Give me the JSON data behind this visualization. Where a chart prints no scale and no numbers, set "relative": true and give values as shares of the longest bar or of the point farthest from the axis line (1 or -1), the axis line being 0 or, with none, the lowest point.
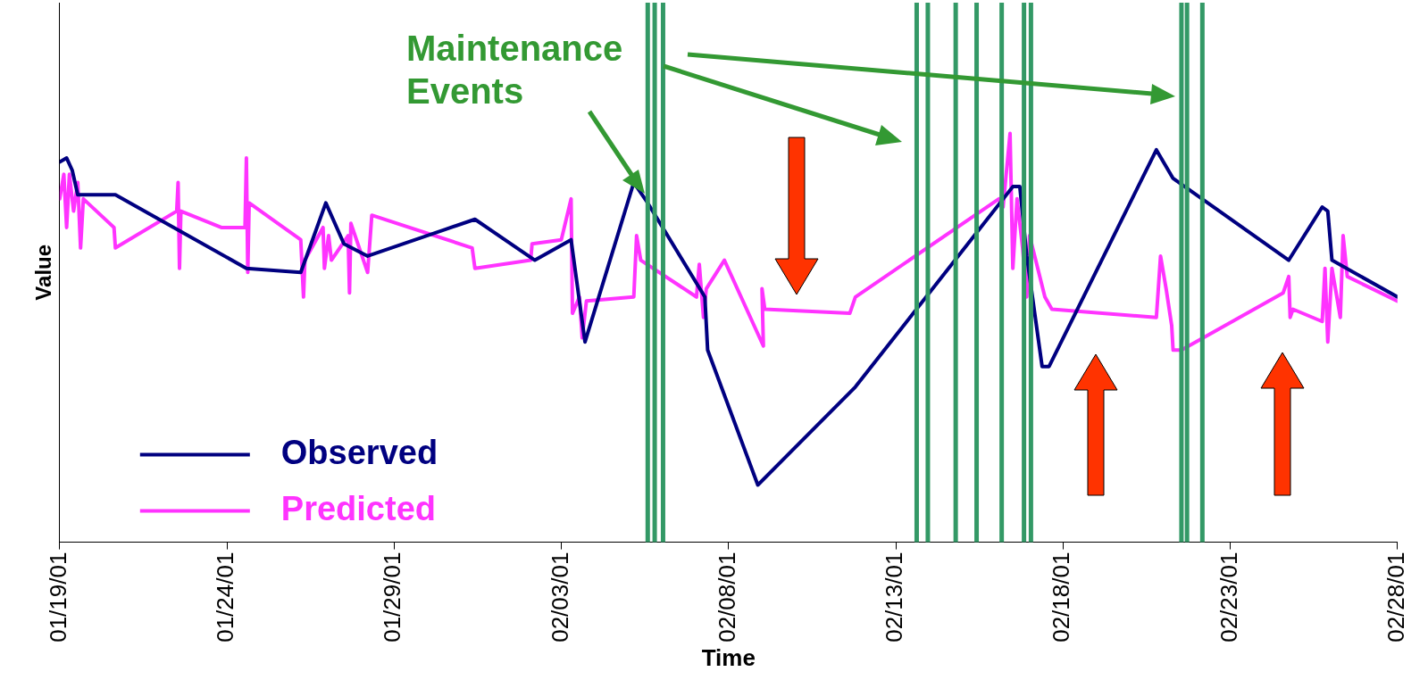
{
  "chart_data": {
    "type": "line",
    "xlabel": "Time",
    "ylabel": "Value",
    "relative": true,
    "legend": "bottom left",
    "marker": "none",
    "line_style": "solid",
    "xlim": [
      "--01-19",
      "--02-28"
    ],
    "xticks": [
      {
        "value": "--01-19",
        "label": "01/19/01"
      },
      {
        "value": "--01-24",
        "label": "01/24/01"
      },
      {
        "value": "--01-29",
        "label": "01/29/01"
      },
      {
        "value": "--02-03",
        "label": "02/03/01"
      },
      {
        "value": "--02-08",
        "label": "02/08/01"
      },
      {
        "value": "--02-13",
        "label": "02/13/01"
      },
      {
        "value": "--02-18",
        "label": "02/18/01"
      },
      {
        "value": "--02-23",
        "label": "02/23/01"
      },
      {
        "value": "--02-28",
        "label": "02/28/01"
      }
    ],
    "annotations": [
      "Maintenance Events"
    ],
    "ref_lines": [
      {
        "axis": "x",
        "value": "--02-05T14:00",
        "color": "#339966"
      },
      {
        "axis": "x",
        "value": "--02-05T19:00",
        "color": "#339966"
      },
      {
        "axis": "x",
        "value": "--02-06T01:00",
        "color": "#339966"
      },
      {
        "axis": "x",
        "value": "--02-13T15:00",
        "color": "#339966"
      },
      {
        "axis": "x",
        "value": "--02-13T23:00",
        "color": "#339966"
      },
      {
        "axis": "x",
        "value": "--02-14T19:00",
        "color": "#339966"
      },
      {
        "axis": "x",
        "value": "--02-15T10:00",
        "color": "#339966"
      },
      {
        "axis": "x",
        "value": "--02-16T04:00",
        "color": "#339966"
      },
      {
        "axis": "x",
        "value": "--02-16T20:00",
        "color": "#339966"
      },
      {
        "axis": "x",
        "value": "--02-17T01:00",
        "color": "#339966"
      },
      {
        "axis": "x",
        "value": "--02-21T13:00",
        "color": "#339966"
      },
      {
        "axis": "x",
        "value": "--02-21T17:00",
        "color": "#339966"
      },
      {
        "axis": "x",
        "value": "--02-22T04:00",
        "color": "#339966"
      }
    ],
    "series": [
      {
        "name": "Observed",
        "color": "#000080",
        "x": [
          "--01-19T00:00",
          "--01-19T05:00",
          "--01-19T09:00",
          "--01-19T13:00",
          "--01-20T16:00",
          "--01-24T14:00",
          "--01-26T05:00",
          "--01-26T23:00",
          "--01-27T12:00",
          "--01-28T05:00",
          "--01-31T10:00",
          "--02-02T05:00",
          "--02-03T07:00",
          "--02-03T17:00",
          "--02-05T04:00",
          "--02-05T14:00",
          "--02-07T07:00",
          "--02-07T09:00",
          "--02-08T21:00",
          "--02-11T19:00",
          "--02-16T12:00",
          "--02-16T17:00",
          "--02-16T22:00",
          "--02-17T09:00",
          "--02-17T14:00",
          "--02-20T19:00",
          "--02-21T07:00",
          "--02-24T18:00",
          "--02-25T18:00",
          "--02-25T22:00",
          "--02-26T01:00",
          "--02-28T00:00"
        ],
        "values": [
          0.93,
          0.94,
          0.91,
          0.85,
          0.85,
          0.67,
          0.66,
          0.83,
          0.73,
          0.7,
          0.79,
          0.69,
          0.74,
          0.49,
          0.88,
          0.83,
          0.6,
          0.47,
          0.14,
          0.38,
          0.87,
          0.87,
          0.7,
          0.43,
          0.43,
          0.96,
          0.89,
          0.69,
          0.82,
          0.81,
          0.69,
          0.6
        ]
      },
      {
        "name": "Predicted",
        "color": "#ff33ff",
        "x": [
          "--01-19T00:00",
          "--01-19T03:00",
          "--01-19T05:00",
          "--01-19T07:00",
          "--01-19T10:00",
          "--01-19T13:00",
          "--01-19T15:00",
          "--01-19T17:00",
          "--01-20T15:00",
          "--01-20T16:00",
          "--01-22T12:00",
          "--01-22T13:00",
          "--01-22T14:00",
          "--01-22T15:00",
          "--01-23T20:00",
          "--01-24T13:00",
          "--01-24T14:00",
          "--01-24T15:00",
          "--01-24T16:00",
          "--01-26T05:00",
          "--01-26T07:00",
          "--01-26T08:00",
          "--01-26T21:00",
          "--01-26T22:00",
          "--01-27T01:00",
          "--01-27T03:00",
          "--01-27T15:00",
          "--01-27T16:00",
          "--01-27T17:00",
          "--01-28T05:00",
          "--01-28T08:00",
          "--01-31T08:00",
          "--01-31T10:00",
          "--02-02T02:00",
          "--02-02T03:00",
          "--02-03T00:00",
          "--02-03T07:00",
          "--02-03T08:00",
          "--02-03T13:00",
          "--02-03T15:00",
          "--02-03T18:00",
          "--02-05T04:00",
          "--02-05T06:00",
          "--02-05T09:00",
          "--02-07T01:00",
          "--02-07T03:00",
          "--02-07T06:00",
          "--02-07T08:00",
          "--02-07T21:00",
          "--02-09T01:00",
          "--02-09T00:00",
          "--02-09T02:00",
          "--02-11T15:00",
          "--02-11T19:00",
          "--02-16T02:00",
          "--02-16T05:00",
          "--02-16T10:00",
          "--02-16T12:00",
          "--02-16T15:00",
          "--02-16T19:00",
          "--02-16T22:00",
          "--02-17T00:00",
          "--02-17T11:00",
          "--02-17T16:00",
          "--02-20T19:00",
          "--02-20T22:00",
          "--02-21T02:00",
          "--02-21T06:00",
          "--02-21T07:00",
          "--02-21T13:00",
          "--02-24T14:00",
          "--02-24T18:00",
          "--02-24T19:00",
          "--02-24T21:00",
          "--02-25T18:00",
          "--02-25T20:00",
          "--02-25T22:00",
          "--02-26T01:00",
          "--02-26T07:00",
          "--02-26T09:00",
          "--02-26T12:00",
          "--02-28T00:00"
        ],
        "values": [
          0.84,
          0.9,
          0.77,
          0.9,
          0.81,
          0.88,
          0.72,
          0.84,
          0.77,
          0.72,
          0.81,
          0.88,
          0.67,
          0.81,
          0.77,
          0.77,
          0.94,
          0.66,
          0.83,
          0.74,
          0.6,
          0.69,
          0.77,
          0.67,
          0.75,
          0.69,
          0.75,
          0.61,
          0.78,
          0.66,
          0.8,
          0.72,
          0.67,
          0.69,
          0.73,
          0.74,
          0.84,
          0.56,
          0.6,
          0.5,
          0.59,
          0.6,
          0.75,
          0.69,
          0.6,
          0.68,
          0.55,
          0.62,
          0.69,
          0.48,
          0.62,
          0.57,
          0.56,
          0.6,
          0.84,
          0.82,
          1,
          0.67,
          0.84,
          0.72,
          0.6,
          0.75,
          0.6,
          0.57,
          0.55,
          0.7,
          0.62,
          0.53,
          0.47,
          0.47,
          0.61,
          0.65,
          0.55,
          0.57,
          0.54,
          0.67,
          0.49,
          0.67,
          0.55,
          0.75,
          0.65,
          0.59
        ]
      }
    ]
  }
}
